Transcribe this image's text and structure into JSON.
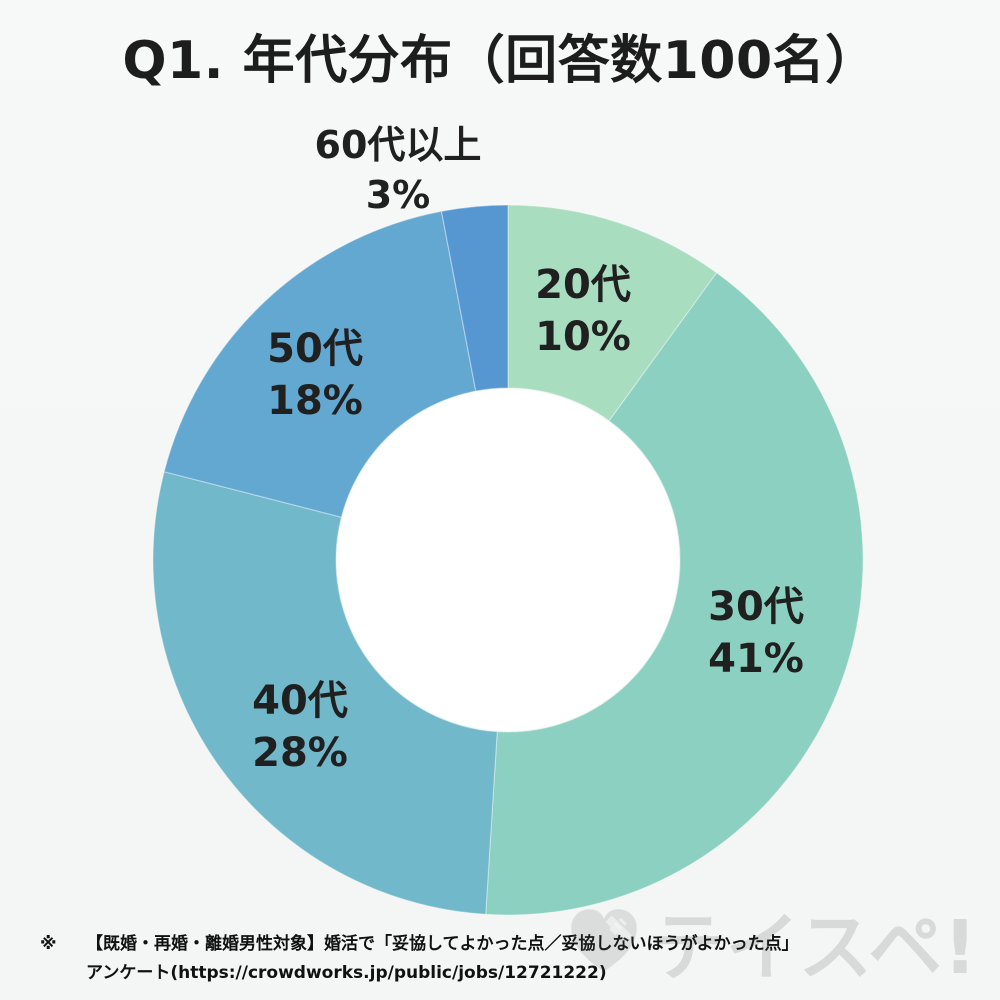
{
  "title": "Q1. 年代分布（回答数100名）",
  "chart_data": {
    "type": "pie",
    "title": "Q1. 年代分布（回答数100名）",
    "slices": [
      {
        "category": "20代",
        "value": 10,
        "percent_label": "10%",
        "color": "#a8ddbf"
      },
      {
        "category": "30代",
        "value": 41,
        "percent_label": "41%",
        "color": "#8bd0c1"
      },
      {
        "category": "40代",
        "value": 28,
        "percent_label": "28%",
        "color": "#71b8ca"
      },
      {
        "category": "50代",
        "value": 18,
        "percent_label": "18%",
        "color": "#63a8d1"
      },
      {
        "category": "60代以上",
        "value": 3,
        "percent_label": "3%",
        "color": "#5697d1"
      }
    ]
  },
  "footer": {
    "mark": "※",
    "line1": "【既婚・再婚・離婚男性対象】婚活で「妥協してよかった点／妥協しないほうがよかった点」",
    "line2": "アンケート(https://crowdworks.jp/public/jobs/12721222)"
  },
  "watermark": {
    "text": "テイスペ!"
  }
}
